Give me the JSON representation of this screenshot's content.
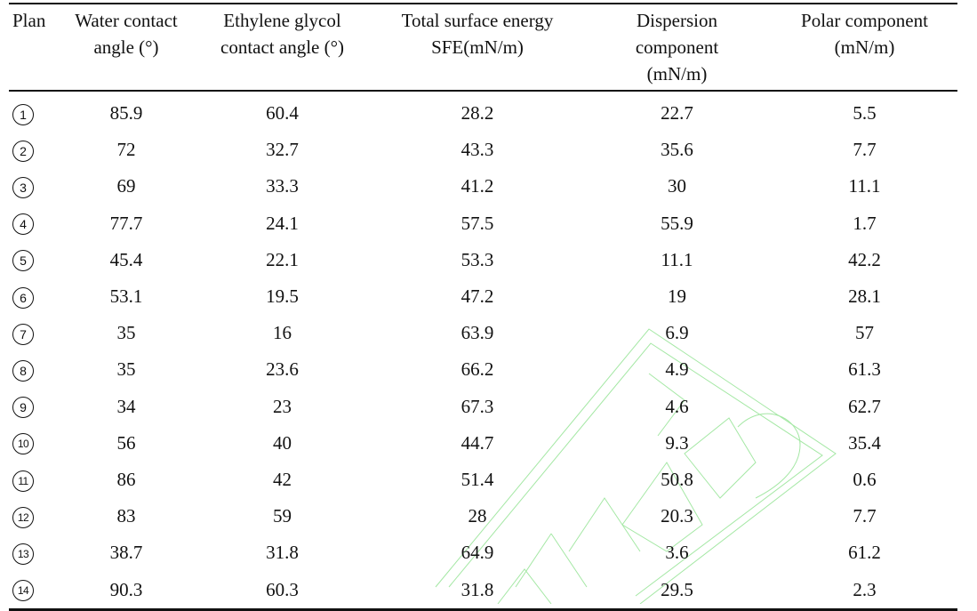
{
  "table": {
    "columns": [
      "Plan",
      "Water contact angle (°)",
      "Ethylene glycol contact angle (°)",
      "Total surface energy SFE(mN/m)",
      "Dispersion component (mN/m)",
      "Polar component (mN/m)"
    ],
    "header": {
      "plan": "Plan",
      "water_line1": "Water contact",
      "water_line2": "angle (°)",
      "eg_line1": "Ethylene glycol",
      "eg_line2": "contact angle (°)",
      "sfe_line1": "Total surface energy",
      "sfe_line2": "SFE(mN/m)",
      "disp_line1": "Dispersion",
      "disp_line2": "component",
      "disp_line3": "(mN/m)",
      "polar_line1": "Polar component",
      "polar_line2": "(mN/m)"
    },
    "rows": [
      {
        "plan": "1",
        "water": "85.9",
        "eg": "60.4",
        "sfe": "28.2",
        "disp": "22.7",
        "polar": "5.5"
      },
      {
        "plan": "2",
        "water": "72",
        "eg": "32.7",
        "sfe": "43.3",
        "disp": "35.6",
        "polar": "7.7"
      },
      {
        "plan": "3",
        "water": "69",
        "eg": "33.3",
        "sfe": "41.2",
        "disp": "30",
        "polar": "11.1"
      },
      {
        "plan": "4",
        "water": "77.7",
        "eg": "24.1",
        "sfe": "57.5",
        "disp": "55.9",
        "polar": "1.7"
      },
      {
        "plan": "5",
        "water": "45.4",
        "eg": "22.1",
        "sfe": "53.3",
        "disp": "11.1",
        "polar": "42.2"
      },
      {
        "plan": "6",
        "water": "53.1",
        "eg": "19.5",
        "sfe": "47.2",
        "disp": "19",
        "polar": "28.1"
      },
      {
        "plan": "7",
        "water": "35",
        "eg": "16",
        "sfe": "63.9",
        "disp": "6.9",
        "polar": "57"
      },
      {
        "plan": "8",
        "water": "35",
        "eg": "23.6",
        "sfe": "66.2",
        "disp": "4.9",
        "polar": "61.3"
      },
      {
        "plan": "9",
        "water": "34",
        "eg": "23",
        "sfe": "67.3",
        "disp": "4.6",
        "polar": "62.7"
      },
      {
        "plan": "10",
        "water": "56",
        "eg": "40",
        "sfe": "44.7",
        "disp": "9.3",
        "polar": "35.4"
      },
      {
        "plan": "11",
        "water": "86",
        "eg": "42",
        "sfe": "51.4",
        "disp": "50.8",
        "polar": "0.6"
      },
      {
        "plan": "12",
        "water": "83",
        "eg": "59",
        "sfe": "28",
        "disp": "20.3",
        "polar": "7.7"
      },
      {
        "plan": "13",
        "water": "38.7",
        "eg": "31.8",
        "sfe": "64.9",
        "disp": "3.6",
        "polar": "61.2"
      },
      {
        "plan": "14",
        "water": "90.3",
        "eg": "60.3",
        "sfe": "31.8",
        "disp": "29.5",
        "polar": "2.3"
      }
    ]
  },
  "watermark": {
    "icon": "stamp-watermark-icon",
    "color": "#5ad55a"
  }
}
